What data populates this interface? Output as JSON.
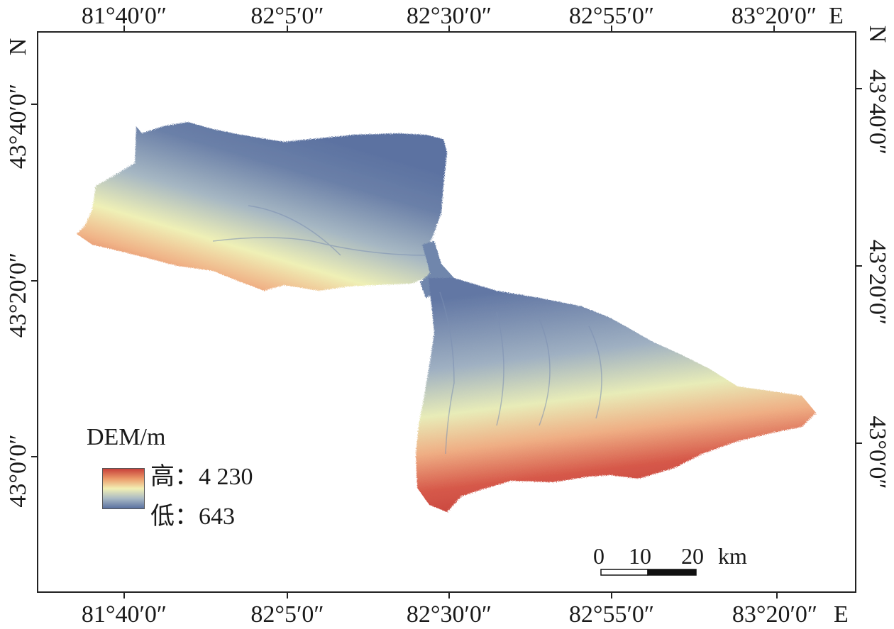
{
  "map": {
    "top_ticks": [
      "81°40′0″",
      "82°5′0″",
      "82°30′0″",
      "82°55′0″",
      "83°20′0″"
    ],
    "bottom_ticks": [
      "81°40′0″",
      "82°5′0″",
      "82°30′0″",
      "82°55′0″",
      "83°20′0″"
    ],
    "left_ticks": [
      "43°40′0″",
      "43°20′0″",
      "43°0′0″"
    ],
    "right_ticks": [
      "43°40′0″",
      "43°20′0″",
      "43°0′0″"
    ],
    "east_label": "E",
    "north_label": "N"
  },
  "legend": {
    "title": "DEM/m",
    "high_label": "高：",
    "high_value": "4 230",
    "low_label": "低：",
    "low_value": "643",
    "colors": {
      "high": "#c8403a",
      "mid": "#f2f0b4",
      "low": "#5a71a0"
    }
  },
  "scale_bar": {
    "labels": [
      "0",
      "10",
      "20"
    ],
    "unit": "km"
  }
}
